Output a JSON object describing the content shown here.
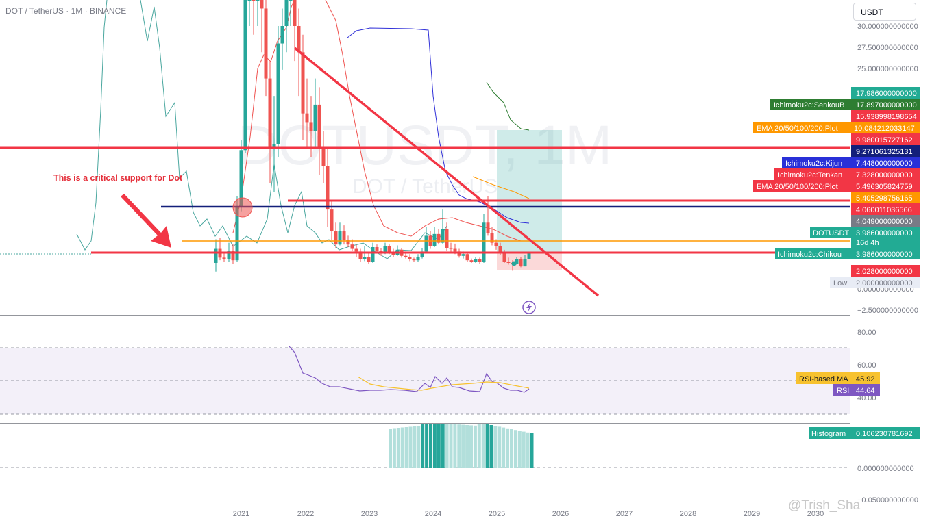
{
  "symbol_line": "DOT / TetherUS · 1M · BINANCE",
  "currency_button": "USDT",
  "annotation": "This is a critical support for Dot",
  "watermark": "@Trish_Sha",
  "bg_symbol": "DOTUSDT, 1M",
  "bg_name": "DOT / TetherUS",
  "colors": {
    "up": "#26a69a",
    "down": "#ef5350",
    "trend": "#f23645",
    "support": "#131f7a",
    "rsi": "#7e57c2",
    "rsi_ma": "#f7c22f",
    "ema": "#ff9800",
    "kijun": "#3030d8",
    "senkou": "#2e7d32",
    "chikou": "#4aa79f"
  },
  "chart_data": [
    {
      "type": "candlestick",
      "x_ticks": [
        "2021",
        "2022",
        "2023",
        "2024",
        "2025",
        "2026",
        "2027",
        "2028",
        "2029",
        "2030"
      ],
      "y_ticks": [
        "30.000000000000",
        "27.500000000000",
        "25.000000000000",
        "0.000000000000",
        "−2.500000000000"
      ],
      "ylim": [
        -2.5,
        31
      ],
      "horizontal_levels": [
        {
          "name": "red resistance line",
          "value": 9.27
        },
        {
          "name": "red line mid",
          "value": 5.0
        },
        {
          "name": "support line (navy)",
          "value": 4.64
        },
        {
          "name": "orange level",
          "value": 3.49
        },
        {
          "name": "red support line",
          "value": 2.96
        }
      ],
      "trendline": {
        "from": [
          "2021-09",
          26.8
        ],
        "to": [
          "2025-12",
          -0.5
        ]
      },
      "price_labels": [
        {
          "text": "17.986000000000",
          "color": "#22ab94"
        },
        {
          "name": "Ichimoku2c:SenkouB",
          "text": "17.897000000000",
          "color": "#2e7d32"
        },
        {
          "text": "15.938998198654",
          "color": "#f23645"
        },
        {
          "name": "EMA 20/50/100/200:Plot",
          "text": "10.084212033147",
          "color": "#ff9800"
        },
        {
          "text": "9.980015727162",
          "color": "#f23645"
        },
        {
          "text": "9.271061325131",
          "color": "#131f7a"
        },
        {
          "name": "Ichimoku2c:Kijun",
          "text": "7.448000000000",
          "color": "#2962ff"
        },
        {
          "name": "Ichimoku2c:Tenkan",
          "text": "7.328000000000",
          "color": "#f23645"
        },
        {
          "name": "EMA 20/50/100/200:Plot",
          "text": "5.496305824759",
          "color": "#f23645"
        },
        {
          "text": "5.405298756165",
          "color": "#ff9800"
        },
        {
          "text": "4.060011036566",
          "color": "#f23645"
        },
        {
          "text": "4.049000000000",
          "color": "#787b86"
        },
        {
          "name": "DOTUSDT",
          "text": "3.986000000000",
          "sub": "16d 4h",
          "color": "#22ab94"
        },
        {
          "name": "Ichimoku2c:Chikou",
          "text": "3.986000000000",
          "color": "#22ab94"
        },
        {
          "text": "2.028000000000",
          "color": "#f23645"
        },
        {
          "name": "Low",
          "text": "2.000000000000",
          "color": "#e8ecf5"
        }
      ]
    },
    {
      "type": "line",
      "panel": "RSI",
      "y_ticks": [
        "80.00",
        "60.00",
        "40.00"
      ],
      "series": [
        {
          "name": "RSI-based MA",
          "last": "45.92",
          "color": "#f7c22f"
        },
        {
          "name": "RSI",
          "last": "44.64",
          "color": "#7e57c2"
        }
      ]
    },
    {
      "type": "bar",
      "panel": "Histogram",
      "y_ticks": [
        "0.000000000000",
        "−0.050000000000"
      ],
      "series": [
        {
          "name": "Histogram",
          "last": "0.106230781692"
        }
      ]
    }
  ]
}
